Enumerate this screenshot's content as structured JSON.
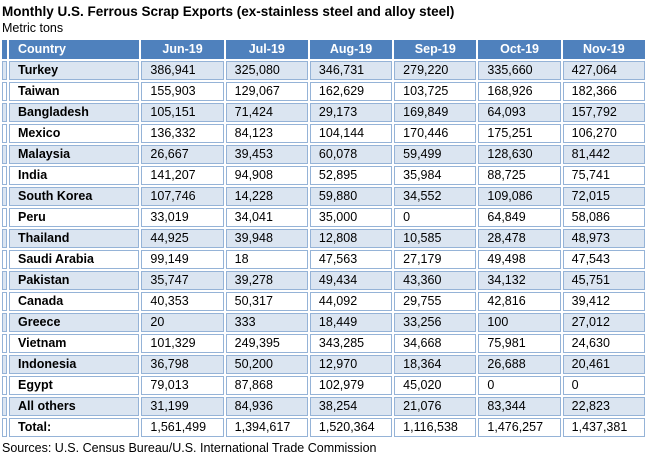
{
  "header": {
    "title": "Monthly U.S. Ferrous Scrap Exports (ex-stainless steel and alloy steel)",
    "subtitle": "Metric tons"
  },
  "footer": {
    "source": "Sources: U.S. Census Bureau/U.S. International Trade Commission"
  },
  "colors": {
    "header_bg": "#4F81BD",
    "header_text": "#FFFFFF",
    "band_bg": "#DBE5F1",
    "row_bg": "#FFFFFF",
    "border": "#95B3D7",
    "text": "#000000"
  },
  "chart_data": {
    "type": "table",
    "title": "Monthly U.S. Ferrous Scrap Exports (ex-stainless steel and alloy steel)",
    "units": "Metric tons",
    "columns": [
      "Country",
      "Jun-19",
      "Jul-19",
      "Aug-19",
      "Sep-19",
      "Oct-19",
      "Nov-19"
    ],
    "rows": [
      {
        "country": "Turkey",
        "values": [
          386941,
          325080,
          346731,
          279220,
          335660,
          427064
        ]
      },
      {
        "country": "Taiwan",
        "values": [
          155903,
          129067,
          162629,
          103725,
          168926,
          182366
        ]
      },
      {
        "country": "Bangladesh",
        "values": [
          105151,
          71424,
          29173,
          169849,
          64093,
          157792
        ]
      },
      {
        "country": "Mexico",
        "values": [
          136332,
          84123,
          104144,
          170446,
          175251,
          106270
        ]
      },
      {
        "country": "Malaysia",
        "values": [
          26667,
          39453,
          60078,
          59499,
          128630,
          81442
        ]
      },
      {
        "country": "India",
        "values": [
          141207,
          94908,
          52895,
          35984,
          88725,
          75741
        ]
      },
      {
        "country": "South Korea",
        "values": [
          107746,
          14228,
          59880,
          34552,
          109086,
          72015
        ]
      },
      {
        "country": "Peru",
        "values": [
          33019,
          34041,
          35000,
          0,
          64849,
          58086
        ]
      },
      {
        "country": "Thailand",
        "values": [
          44925,
          39948,
          12808,
          10585,
          28478,
          48973
        ]
      },
      {
        "country": "Saudi Arabia",
        "values": [
          99149,
          18,
          47563,
          27179,
          49498,
          47543
        ]
      },
      {
        "country": "Pakistan",
        "values": [
          35747,
          39278,
          49434,
          43360,
          34132,
          45751
        ]
      },
      {
        "country": "Canada",
        "values": [
          40353,
          50317,
          44092,
          29755,
          42816,
          39412
        ]
      },
      {
        "country": "Greece",
        "values": [
          20,
          333,
          18449,
          33256,
          100,
          27012
        ]
      },
      {
        "country": "Vietnam",
        "values": [
          101329,
          249395,
          343285,
          34668,
          75981,
          24630
        ]
      },
      {
        "country": "Indonesia",
        "values": [
          36798,
          50200,
          12970,
          18364,
          26688,
          20461
        ]
      },
      {
        "country": "Egypt",
        "values": [
          79013,
          87868,
          102979,
          45020,
          0,
          0
        ]
      },
      {
        "country": "All others",
        "values": [
          31199,
          84936,
          38254,
          21076,
          83344,
          22823
        ]
      },
      {
        "country": "Total:",
        "values": [
          1561499,
          1394617,
          1520364,
          1116538,
          1476257,
          1437381
        ]
      }
    ]
  }
}
